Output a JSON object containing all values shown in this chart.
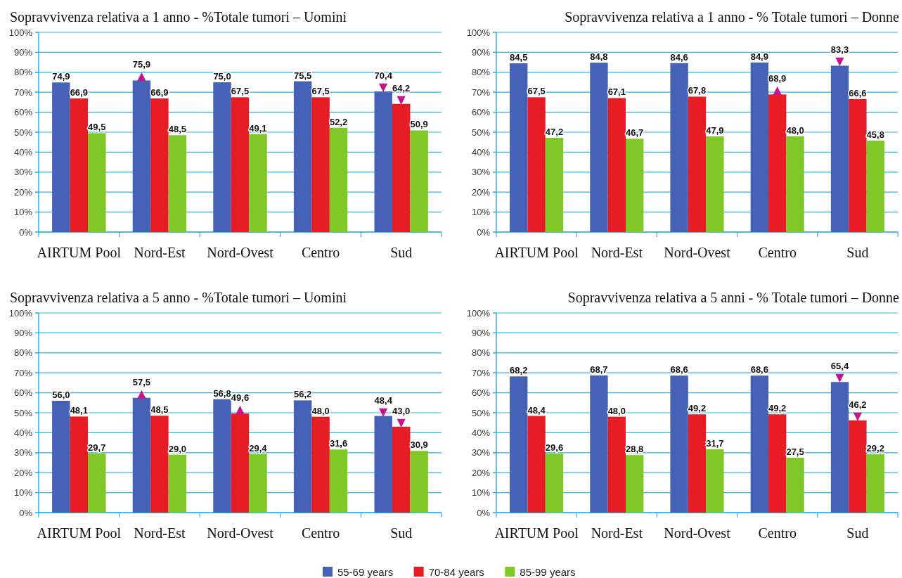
{
  "chart_data": [
    {
      "type": "bar",
      "title": "Sopravvivenza relativa a 1 anno - %Totale tumori – Uomini",
      "categories": [
        "AIRTUM Pool",
        "Nord-Est",
        "Nord-Ovest",
        "Centro",
        "Sud"
      ],
      "series": [
        {
          "color": "#4662b6",
          "values": [
            74.9,
            75.9,
            75.0,
            75.5,
            70.4
          ],
          "value_labels": [
            "74,9",
            "75,9",
            "75,0",
            "75,5",
            "70,4"
          ]
        },
        {
          "color": "#e81c24",
          "values": [
            66.9,
            66.9,
            67.5,
            67.5,
            64.2
          ],
          "value_labels": [
            "66,9",
            "66,9",
            "67,5",
            "67,5",
            "64,2"
          ]
        },
        {
          "color": "#80c828",
          "values": [
            49.5,
            48.5,
            49.1,
            52.2,
            50.9
          ],
          "value_labels": [
            "49,5",
            "48,5",
            "49,1",
            "52,2",
            "50,9"
          ]
        }
      ],
      "ylim": [
        0,
        100
      ],
      "yticks": [
        {
          "value": 0,
          "label": "0%"
        },
        {
          "value": 10,
          "label": "10%"
        },
        {
          "value": 20,
          "label": "20%"
        },
        {
          "value": 30,
          "label": "30%"
        },
        {
          "value": 40,
          "label": "40%"
        },
        {
          "value": 50,
          "label": "50%"
        },
        {
          "value": 60,
          "label": "60%"
        },
        {
          "value": 70,
          "label": "70%"
        },
        {
          "value": 80,
          "label": "80%"
        },
        {
          "value": 90,
          "label": "90%"
        },
        {
          "value": 100,
          "label": "100%"
        }
      ],
      "grid": "y",
      "annotations": [
        {
          "text": "▲",
          "y": 75.9
        },
        {
          "text": "▼",
          "y": 70.4
        },
        {
          "text": "▼",
          "x": "Sud",
          "y": 64.2
        }
      ]
    },
    {
      "type": "bar",
      "title": "Sopravvivenza relativa a 1 anno - % Totale tumori – Donne",
      "categories": [
        "AIRTUM Pool",
        "Nord-Est",
        "Nord-Ovest",
        "Centro",
        "Sud"
      ],
      "series": [
        {
          "color": "#4662b6",
          "values": [
            84.5,
            84.8,
            84.6,
            84.9,
            83.3
          ],
          "value_labels": [
            "84,5",
            "84,8",
            "84,6",
            "84,9",
            "83,3"
          ]
        },
        {
          "color": "#e81c24",
          "values": [
            67.5,
            67.1,
            67.8,
            68.9,
            66.6
          ],
          "value_labels": [
            "67,5",
            "67,1",
            "67,8",
            "68,9",
            "66,6"
          ]
        },
        {
          "color": "#80c828",
          "values": [
            47.2,
            46.7,
            47.9,
            48.0,
            45.8
          ],
          "value_labels": [
            "47,2",
            "46,7",
            "47,9",
            "48,0",
            "45,8"
          ]
        }
      ],
      "ylim": [
        0,
        100
      ],
      "yticks": [
        {
          "value": 0,
          "label": "0%"
        },
        {
          "value": 10,
          "label": "10%"
        },
        {
          "value": 20,
          "label": "20%"
        },
        {
          "value": 30,
          "label": "30%"
        },
        {
          "value": 40,
          "label": "40%"
        },
        {
          "value": 50,
          "label": "50%"
        },
        {
          "value": 60,
          "label": "60%"
        },
        {
          "value": 70,
          "label": "70%"
        },
        {
          "value": 80,
          "label": "80%"
        },
        {
          "value": 90,
          "label": "90%"
        },
        {
          "value": 100,
          "label": "100%"
        }
      ],
      "grid": "y",
      "annotations": [
        {
          "text": "▲",
          "x": "Centro",
          "y": 68.9
        },
        {
          "text": "▼",
          "y": 83.3
        }
      ]
    },
    {
      "type": "bar",
      "title": "Sopravvivenza relativa a 5 anno - %Totale tumori – Uomini",
      "categories": [
        "AIRTUM Pool",
        "Nord-Est",
        "Nord-Ovest",
        "Centro",
        "Sud"
      ],
      "series": [
        {
          "color": "#4662b6",
          "values": [
            56.0,
            57.5,
            56.8,
            56.2,
            48.4
          ],
          "value_labels": [
            "56,0",
            "57,5",
            "56,8",
            "56,2",
            "48,4"
          ]
        },
        {
          "color": "#e81c24",
          "values": [
            48.1,
            48.5,
            49.6,
            48.0,
            43.0
          ],
          "value_labels": [
            "48,1",
            "48,5",
            "49,6",
            "48,0",
            "43,0"
          ]
        },
        {
          "color": "#80c828",
          "values": [
            29.7,
            29.0,
            29.4,
            31.6,
            30.9
          ],
          "value_labels": [
            "29,7",
            "29,0",
            "29,4",
            "31,6",
            "30,9"
          ]
        }
      ],
      "ylim": [
        0,
        100
      ],
      "yticks": [
        {
          "value": 0,
          "label": "0%"
        },
        {
          "value": 10,
          "label": "10%"
        },
        {
          "value": 20,
          "label": "20%"
        },
        {
          "value": 30,
          "label": "30%"
        },
        {
          "value": 40,
          "label": "40%"
        },
        {
          "value": 50,
          "label": "50%"
        },
        {
          "value": 60,
          "label": "60%"
        },
        {
          "value": 70,
          "label": "70%"
        },
        {
          "value": 80,
          "label": "80%"
        },
        {
          "value": 90,
          "label": "90%"
        },
        {
          "value": 100,
          "label": "100%"
        }
      ],
      "grid": "y",
      "annotations": [
        {
          "text": "▲",
          "y": 57.5
        },
        {
          "text": "▲",
          "x": "Nord-Ovest",
          "y": 49.6
        },
        {
          "text": "▼",
          "y": 48.4
        },
        {
          "text": "▼",
          "x": "Sud",
          "y": 43.0
        }
      ]
    },
    {
      "type": "bar",
      "title": "Sopravvivenza relativa a 5 anni - % Totale tumori – Donne",
      "categories": [
        "AIRTUM Pool",
        "Nord-Est",
        "Nord-Ovest",
        "Centro",
        "Sud"
      ],
      "series": [
        {
          "name": "55-69 years",
          "color": "#4662b6",
          "values": [
            68.2,
            68.7,
            68.6,
            68.6,
            65.4
          ],
          "value_labels": [
            "68,2",
            "68,7",
            "68,6",
            "68,6",
            "65,4"
          ]
        },
        {
          "name": "70-84 years",
          "color": "#e81c24",
          "values": [
            48.4,
            48.0,
            49.2,
            49.2,
            46.2
          ],
          "value_labels": [
            "48,4",
            "48,0",
            "49,2",
            "49,2",
            "46,2"
          ]
        },
        {
          "name": "85-99 years",
          "color": "#80c828",
          "values": [
            29.6,
            28.8,
            31.7,
            27.5,
            29.2
          ],
          "value_labels": [
            "29,6",
            "28,8",
            "31,7",
            "27,5",
            "29,2"
          ]
        }
      ],
      "ylim": [
        0,
        100
      ],
      "yticks": [
        {
          "value": 0,
          "label": "0%"
        },
        {
          "value": 10,
          "label": "10%"
        },
        {
          "value": 20,
          "label": "20%"
        },
        {
          "value": 30,
          "label": "30%"
        },
        {
          "value": 40,
          "label": "40%"
        },
        {
          "value": 50,
          "label": "50%"
        },
        {
          "value": 60,
          "label": "60%"
        },
        {
          "value": 70,
          "label": "70%"
        },
        {
          "value": 80,
          "label": "80%"
        },
        {
          "value": 90,
          "label": "90%"
        },
        {
          "value": 100,
          "label": "100%"
        }
      ],
      "grid": "y",
      "legend": "bottom",
      "annotations": [
        {
          "text": "▼",
          "y": 65.4
        },
        {
          "text": "▼",
          "x": "Sud",
          "y": 46.2
        }
      ]
    }
  ]
}
